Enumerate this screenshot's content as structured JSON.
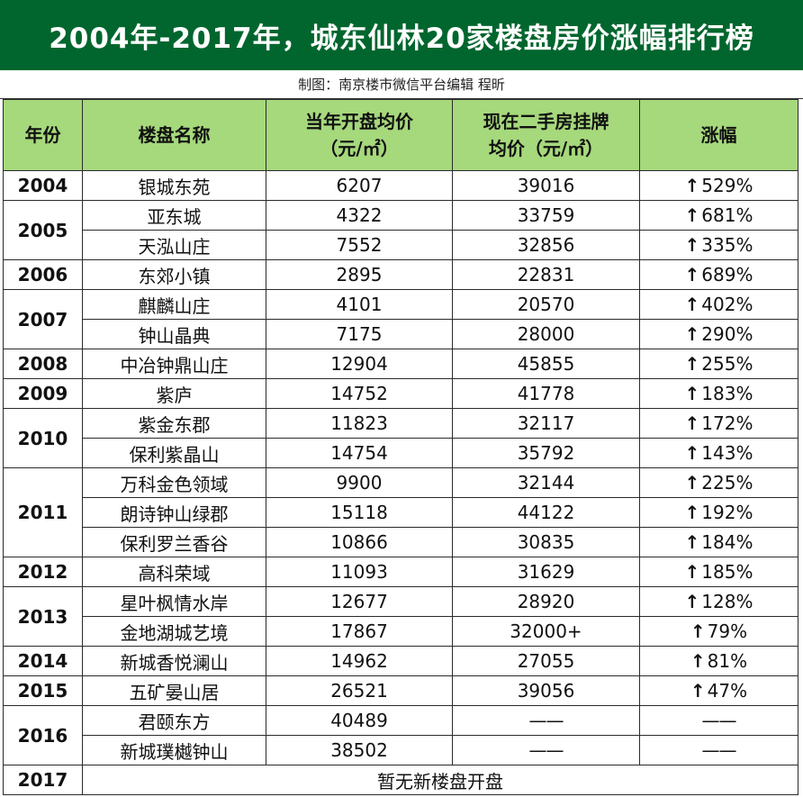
{
  "title": "2004年-2017年，城东仙林20家楼盘房价涨幅排行榜",
  "credit": "制图：南京楼市微信平台编辑 程昕",
  "headers": {
    "year": "年份",
    "name": "楼盘名称",
    "open_price_line1": "当年开盘均价",
    "open_price_line2": "（元/㎡）",
    "resale_price_line1": "现在二手房挂牌",
    "resale_price_line2": "均价（元/㎡）",
    "rise": "涨幅"
  },
  "arrow_symbol": "↑",
  "dash_symbol": "——",
  "rows": [
    {
      "name": "银城东苑",
      "open": "6207",
      "resale": "39016",
      "rise": "529%"
    },
    {
      "name": "亚东城",
      "open": "4322",
      "resale": "33759",
      "rise": "681%"
    },
    {
      "name": "天泓山庄",
      "open": "7552",
      "resale": "32856",
      "rise": "335%"
    },
    {
      "name": "东郊小镇",
      "open": "2895",
      "resale": "22831",
      "rise": "689%"
    },
    {
      "name": "麒麟山庄",
      "open": "4101",
      "resale": "20570",
      "rise": "402%"
    },
    {
      "name": "钟山晶典",
      "open": "7175",
      "resale": "28000",
      "rise": "290%"
    },
    {
      "name": "中冶钟鼎山庄",
      "open": "12904",
      "resale": "45855",
      "rise": "255%"
    },
    {
      "name": "紫庐",
      "open": "14752",
      "resale": "41778",
      "rise": "183%"
    },
    {
      "name": "紫金东郡",
      "open": "11823",
      "resale": "32117",
      "rise": "172%"
    },
    {
      "name": "保利紫晶山",
      "open": "14754",
      "resale": "35792",
      "rise": "143%"
    },
    {
      "name": "万科金色领域",
      "open": "9900",
      "resale": "32144",
      "rise": "225%"
    },
    {
      "name": "朗诗钟山绿郡",
      "open": "15118",
      "resale": "44122",
      "rise": "192%"
    },
    {
      "name": "保利罗兰香谷",
      "open": "10866",
      "resale": "30835",
      "rise": "184%"
    },
    {
      "name": "高科荣域",
      "open": "11093",
      "resale": "31629",
      "rise": "185%"
    },
    {
      "name": "星叶枫情水岸",
      "open": "12677",
      "resale": "28920",
      "rise": "128%"
    },
    {
      "name": "金地湖城艺境",
      "open": "17867",
      "resale": "32000+",
      "rise": "79%"
    },
    {
      "name": "新城香悦澜山",
      "open": "14962",
      "resale": "27055",
      "rise": "81%"
    },
    {
      "name": "五矿晏山居",
      "open": "26521",
      "resale": "39056",
      "rise": "47%"
    },
    {
      "name": "君颐东方",
      "open": "40489",
      "resale": "",
      "rise": ""
    },
    {
      "name": "新城璞樾钟山",
      "open": "38502",
      "resale": "",
      "rise": ""
    }
  ],
  "years": [
    "2004",
    "2005",
    "2006",
    "2007",
    "2008",
    "2009",
    "2010",
    "2011",
    "2012",
    "2013",
    "2014",
    "2015",
    "2016",
    "2017"
  ],
  "year_row_counts": [
    1,
    2,
    1,
    2,
    1,
    1,
    2,
    3,
    1,
    2,
    1,
    1,
    2,
    1
  ],
  "last_row_text": "暂无新楼盘开盘"
}
